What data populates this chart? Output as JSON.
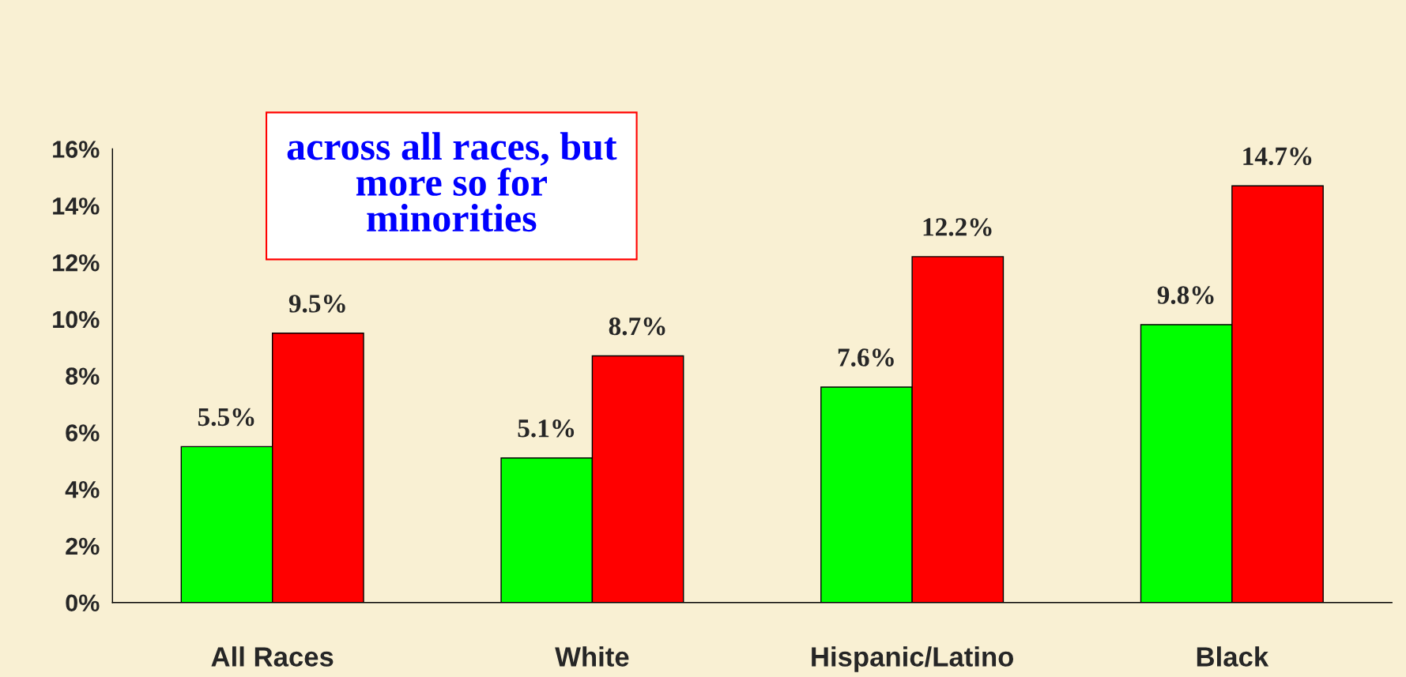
{
  "chart_data": {
    "type": "bar",
    "categories": [
      "All Races",
      "White",
      "Hispanic/Latino",
      "Black"
    ],
    "series": [
      {
        "color": "#00ff00",
        "values": [
          5.5,
          5.1,
          7.6,
          9.8
        ],
        "value_labels": [
          "5.5%",
          "5.1%",
          "7.6%",
          "9.8%"
        ]
      },
      {
        "color": "#ff0000",
        "values": [
          9.5,
          8.7,
          12.2,
          14.7
        ],
        "value_labels": [
          "9.5%",
          "8.7%",
          "12.2%",
          "14.7%"
        ]
      }
    ],
    "ylim": [
      0,
      16
    ],
    "yticks": [
      {
        "value": 0,
        "label": "0%"
      },
      {
        "value": 2,
        "label": "2%"
      },
      {
        "value": 4,
        "label": "4%"
      },
      {
        "value": 6,
        "label": "6%"
      },
      {
        "value": 8,
        "label": "8%"
      },
      {
        "value": 10,
        "label": "10%"
      },
      {
        "value": 12,
        "label": "12%"
      },
      {
        "value": 14,
        "label": "14%"
      },
      {
        "value": 16,
        "label": "16%"
      }
    ],
    "annotations": [
      "across all races, but\nmore so for\nminorities"
    ],
    "grid": false,
    "legend": false
  }
}
